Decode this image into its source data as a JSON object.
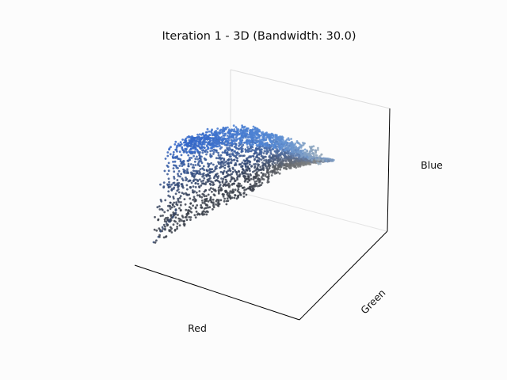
{
  "chart_data": {
    "type": "scatter",
    "title": "Iteration 1 - 3D (Bandwidth: 30.0)",
    "xlabel": "Red",
    "ylabel": "Green",
    "zlabel": "Blue",
    "projection": "3d",
    "grid": false,
    "tick_labels_visible": false,
    "point_color_source": "each point colored by its own RGB value",
    "colors": {
      "background": "#fcfcfc",
      "axis_line": "#000000",
      "pane_edge": "#dddddd",
      "palette_blue": "#2f63c8",
      "palette_dark": "#3a3f4a",
      "palette_light_blue": "#6aa0de",
      "palette_gray": "#b0b0a8"
    },
    "point_count_approx": 2600
  }
}
